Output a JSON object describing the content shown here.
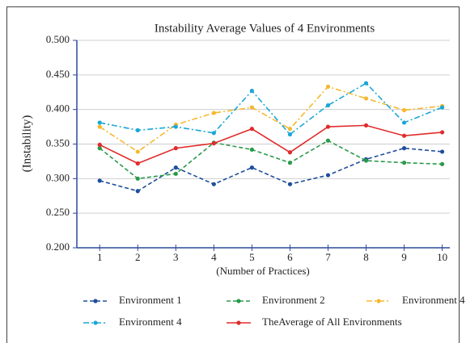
{
  "chart_data": {
    "type": "line",
    "title": "Instability Average Values of 4 Environments",
    "x_label": "(Number of Practices)",
    "y_label": "(Instability)",
    "x": [
      1,
      2,
      3,
      4,
      5,
      6,
      7,
      8,
      9,
      10
    ],
    "xlim": [
      0.4,
      10.2
    ],
    "xticks": [
      1,
      2,
      3,
      4,
      5,
      6,
      7,
      8,
      9,
      10
    ],
    "ylim": [
      0.2,
      0.5
    ],
    "yticks": [
      {
        "value": 0.2,
        "label": "0.200"
      },
      {
        "value": 0.25,
        "label": "0.250"
      },
      {
        "value": 0.3,
        "label": "0.300"
      },
      {
        "value": 0.35,
        "label": "0.350"
      },
      {
        "value": 0.4,
        "label": "0.400"
      },
      {
        "value": 0.45,
        "label": "0.450"
      },
      {
        "value": 0.5,
        "label": "0.500"
      }
    ],
    "grid": true,
    "legend": "bottom",
    "series": [
      {
        "name": "Environment 1",
        "color": "#1f4e9c",
        "style": "dashed",
        "values": [
          0.297,
          0.282,
          0.316,
          0.292,
          0.316,
          0.292,
          0.305,
          0.328,
          0.344,
          0.339
        ]
      },
      {
        "name": "Environment 2",
        "color": "#2a9a4a",
        "style": "dashed",
        "values": [
          0.344,
          0.3,
          0.307,
          0.352,
          0.342,
          0.323,
          0.355,
          0.326,
          0.323,
          0.321
        ]
      },
      {
        "name": "Environment 4",
        "color": "#f5b82e",
        "style": "dash-dot",
        "values": [
          0.375,
          0.339,
          0.378,
          0.395,
          0.403,
          0.372,
          0.433,
          0.416,
          0.399,
          0.405
        ]
      },
      {
        "name": "Environment 4",
        "color": "#1aa7d8",
        "style": "dash-dot",
        "values": [
          0.381,
          0.37,
          0.375,
          0.366,
          0.427,
          0.364,
          0.406,
          0.438,
          0.381,
          0.403
        ]
      },
      {
        "name": "TheAverage of All Environments",
        "color": "#e02b2b",
        "style": "solid",
        "values": [
          0.349,
          0.322,
          0.344,
          0.351,
          0.372,
          0.338,
          0.375,
          0.377,
          0.362,
          0.367
        ]
      }
    ]
  }
}
